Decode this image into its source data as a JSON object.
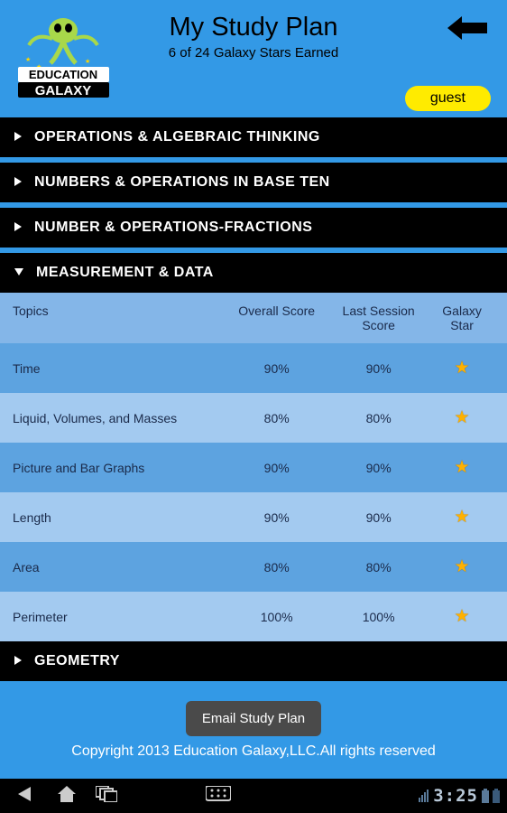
{
  "colors": {
    "page_bg": "#3399e6",
    "section_bg": "#000000",
    "section_text": "#ffffff",
    "table_header_bg": "#84b6e8",
    "row_dark_bg": "#5da3e0",
    "row_light_bg": "#a3caf0",
    "text_dark": "#1a2a4a",
    "badge_bg": "#ffeb00",
    "star_color": "#ffb100",
    "email_btn_bg": "#4a4a4a",
    "copyright_color": "#ffffff",
    "navbar_bg": "#000000"
  },
  "logo": {
    "line1": "EDUCATION",
    "line2": "GALAXY"
  },
  "header": {
    "title": "My Study Plan",
    "subtitle": "6 of 24 Galaxy Stars Earned",
    "guest_label": "guest"
  },
  "sections": [
    {
      "label": "OPERATIONS & ALGEBRAIC THINKING",
      "expanded": false
    },
    {
      "label": "NUMBERS & OPERATIONS IN BASE TEN",
      "expanded": false
    },
    {
      "label": "NUMBER & OPERATIONS-FRACTIONS",
      "expanded": false
    },
    {
      "label": "MEASUREMENT & DATA",
      "expanded": true
    },
    {
      "label": "GEOMETRY",
      "expanded": false
    }
  ],
  "table": {
    "columns": {
      "topics": "Topics",
      "overall": "Overall Score",
      "last": "Last Session Score",
      "star": "Galaxy Star"
    },
    "rows": [
      {
        "topic": "Time",
        "overall": "90%",
        "last": "90%",
        "star": true
      },
      {
        "topic": "Liquid, Volumes, and Masses",
        "overall": "80%",
        "last": "80%",
        "star": true
      },
      {
        "topic": "Picture and Bar Graphs",
        "overall": "90%",
        "last": "90%",
        "star": true
      },
      {
        "topic": "Length",
        "overall": "90%",
        "last": "90%",
        "star": true
      },
      {
        "topic": "Area",
        "overall": "80%",
        "last": "80%",
        "star": true
      },
      {
        "topic": "Perimeter",
        "overall": "100%",
        "last": "100%",
        "star": true
      }
    ]
  },
  "email_btn": "Email Study Plan",
  "copyright": "Copyright 2013 Education Galaxy,LLC.All rights reserved",
  "navbar": {
    "clock": "3:25"
  }
}
